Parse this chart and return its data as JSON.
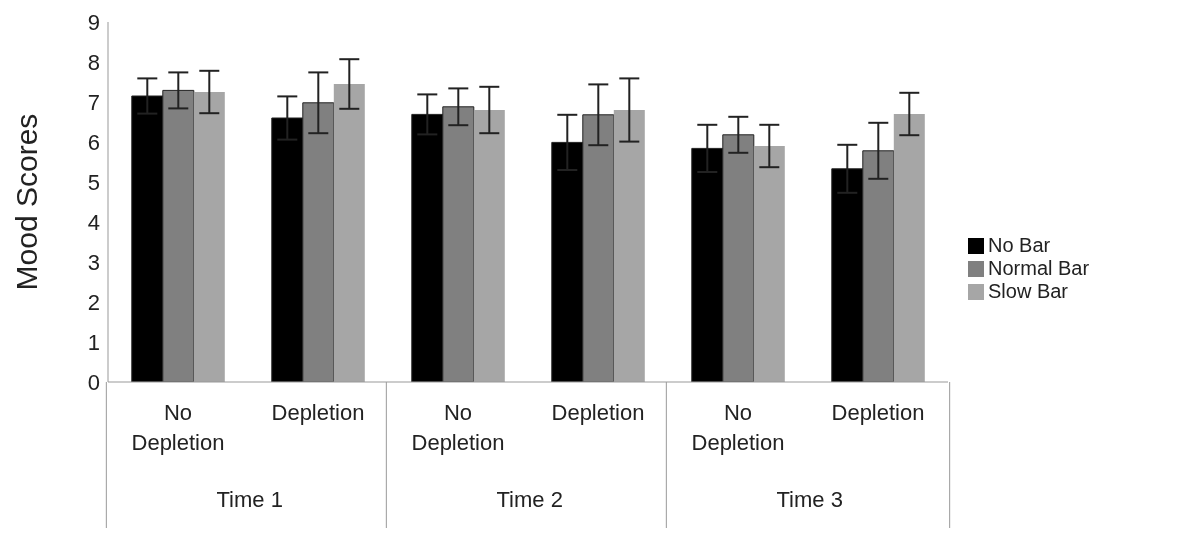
{
  "chart_data": {
    "type": "bar",
    "ylabel": "Mood Scores",
    "categories": [
      "No Depletion",
      "Depletion",
      "No Depletion",
      "Depletion",
      "No Depletion",
      "Depletion"
    ],
    "series": [
      {
        "name": "No Bar",
        "color": "#000000",
        "values": [
          7.15,
          6.6,
          6.69,
          5.99,
          5.84,
          5.33
        ],
        "errors": [
          0.44,
          0.54,
          0.5,
          0.69,
          0.59,
          0.6
        ]
      },
      {
        "name": "Normal Bar",
        "color": "#808080",
        "values": [
          7.29,
          6.98,
          6.88,
          6.68,
          6.18,
          5.78
        ],
        "errors": [
          0.45,
          0.76,
          0.46,
          0.76,
          0.45,
          0.7
        ]
      },
      {
        "name": "Slow Bar",
        "color": "#a6a6a6",
        "values": [
          7.25,
          7.45,
          6.8,
          6.8,
          5.9,
          6.7
        ],
        "errors": [
          0.53,
          0.62,
          0.58,
          0.79,
          0.53,
          0.53
        ]
      }
    ],
    "ylim": [
      0,
      9
    ],
    "yticks": [
      0,
      1,
      2,
      3,
      4,
      5,
      6,
      7,
      8,
      9
    ],
    "legend": "right",
    "annotations": [
      "Time 1",
      "Time 2",
      "Time 3"
    ]
  }
}
